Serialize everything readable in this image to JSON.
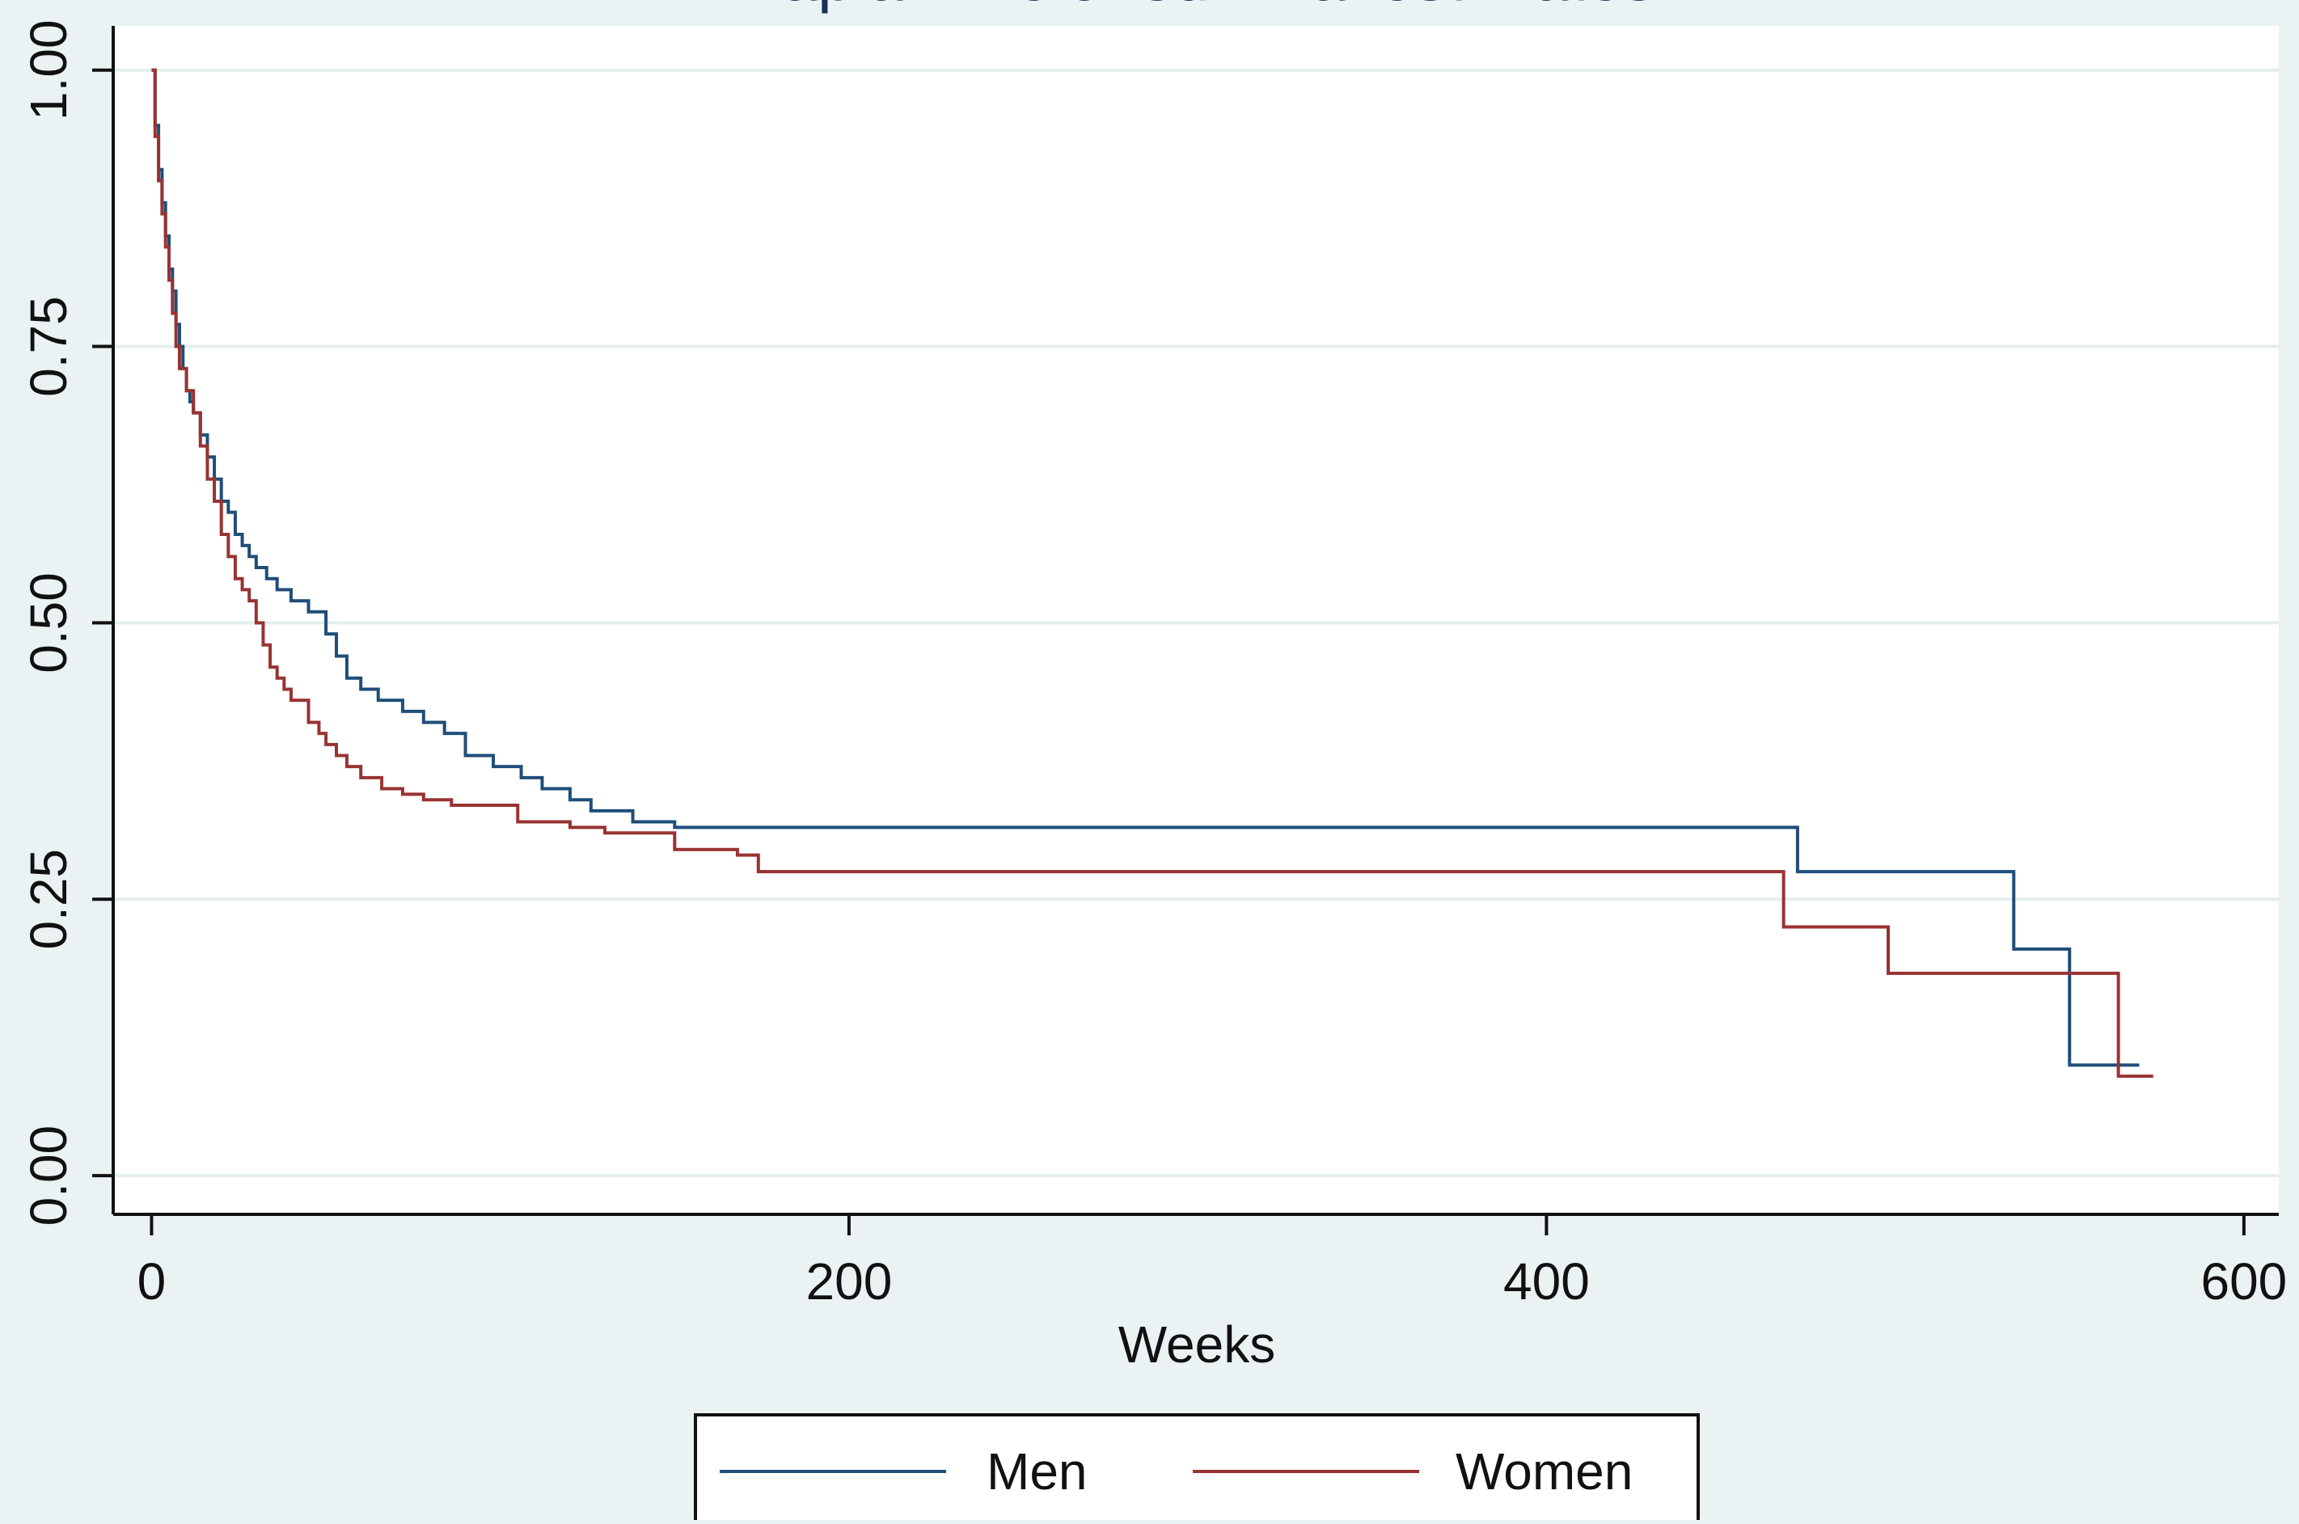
{
  "chart_data": {
    "type": "line",
    "step": true,
    "title": "Kaplan-Meier survival estimates",
    "xlabel": "Weeks",
    "ylabel": "",
    "xlim": [
      -11,
      610
    ],
    "ylim": [
      -0.035,
      1.04
    ],
    "xticks": [
      0,
      200,
      400,
      600
    ],
    "xtick_labels": [
      "0",
      "200",
      "400",
      "600"
    ],
    "yticks": [
      0,
      0.25,
      0.5,
      0.75,
      1
    ],
    "ytick_labels": [
      "0.00",
      "0.25",
      "0.50",
      "0.75",
      "1.00"
    ],
    "grid": true,
    "legend": "bottom",
    "series": [
      {
        "name": "Men",
        "color": "#1f4e79",
        "x": [
          0,
          1,
          2,
          3,
          4,
          5,
          6,
          7,
          8,
          9,
          10,
          11,
          12,
          14,
          16,
          18,
          20,
          22,
          24,
          26,
          28,
          30,
          33,
          36,
          40,
          45,
          50,
          53,
          56,
          60,
          65,
          72,
          78,
          84,
          90,
          98,
          106,
          112,
          120,
          126,
          138,
          150,
          472,
          534,
          550,
          570
        ],
        "y": [
          1.0,
          0.95,
          0.91,
          0.88,
          0.85,
          0.82,
          0.8,
          0.77,
          0.75,
          0.73,
          0.71,
          0.7,
          0.69,
          0.67,
          0.65,
          0.63,
          0.61,
          0.6,
          0.58,
          0.57,
          0.56,
          0.55,
          0.54,
          0.53,
          0.52,
          0.51,
          0.49,
          0.47,
          0.45,
          0.44,
          0.43,
          0.42,
          0.41,
          0.4,
          0.38,
          0.37,
          0.36,
          0.35,
          0.34,
          0.33,
          0.32,
          0.315,
          0.275,
          0.205,
          0.1,
          0.1
        ]
      },
      {
        "name": "Women",
        "color": "#993333",
        "x": [
          0,
          1,
          2,
          3,
          4,
          5,
          6,
          7,
          8,
          10,
          12,
          14,
          16,
          18,
          20,
          22,
          24,
          26,
          28,
          30,
          32,
          34,
          36,
          38,
          40,
          45,
          48,
          50,
          53,
          56,
          60,
          66,
          72,
          78,
          86,
          105,
          120,
          130,
          150,
          168,
          174,
          468,
          498,
          564,
          574
        ],
        "y": [
          1.0,
          0.94,
          0.9,
          0.87,
          0.84,
          0.81,
          0.78,
          0.75,
          0.73,
          0.71,
          0.69,
          0.66,
          0.63,
          0.61,
          0.58,
          0.56,
          0.54,
          0.53,
          0.52,
          0.5,
          0.48,
          0.46,
          0.45,
          0.44,
          0.43,
          0.41,
          0.4,
          0.39,
          0.38,
          0.37,
          0.36,
          0.35,
          0.345,
          0.34,
          0.335,
          0.32,
          0.315,
          0.31,
          0.295,
          0.29,
          0.275,
          0.225,
          0.183,
          0.09,
          0.09
        ]
      }
    ]
  }
}
